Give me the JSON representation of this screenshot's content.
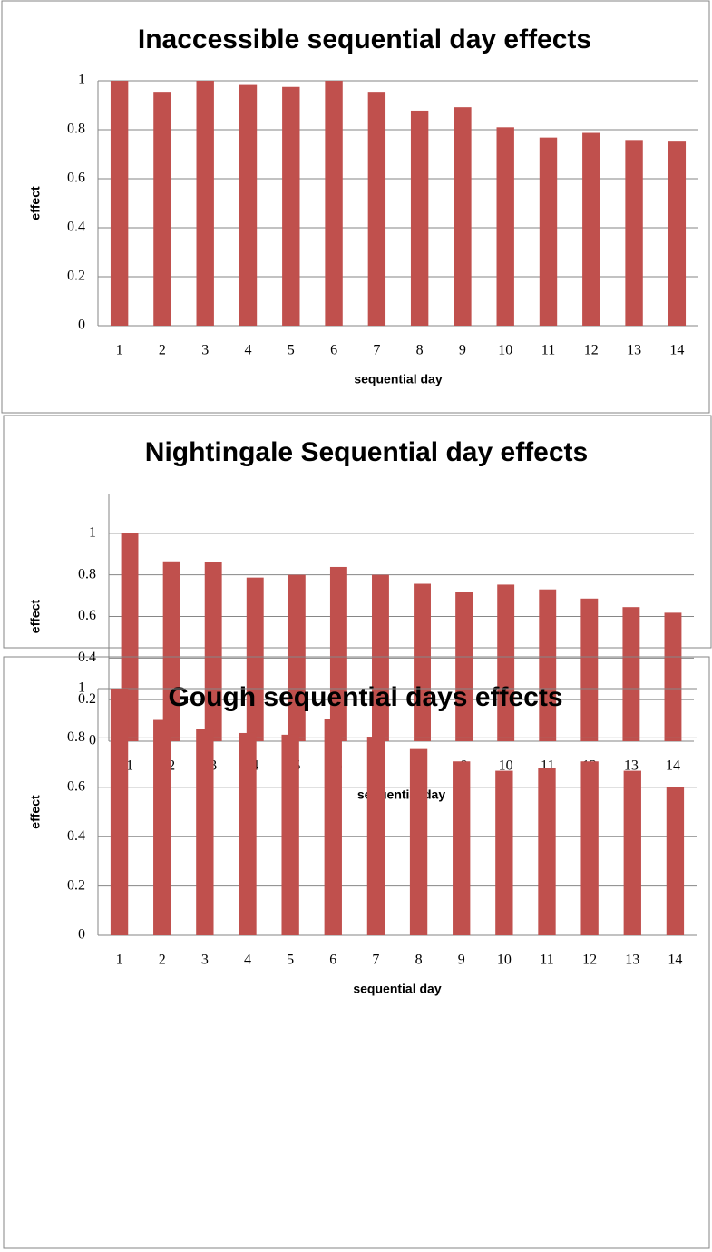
{
  "chart_data": [
    {
      "type": "bar",
      "title": "Inaccessible sequential day effects",
      "x_label": "sequential day",
      "y_label": "effect",
      "categories": [
        "1",
        "2",
        "3",
        "4",
        "5",
        "6",
        "7",
        "8",
        "9",
        "10",
        "11",
        "12",
        "13",
        "14"
      ],
      "values": [
        1,
        0.955,
        1,
        0.983,
        0.975,
        1,
        0.955,
        0.878,
        0.892,
        0.81,
        0.768,
        0.787,
        0.758,
        0.755
      ],
      "color": "#c0504d",
      "ylim": [
        0,
        1
      ],
      "yticks": [
        0,
        0.2,
        0.4,
        0.6,
        0.8,
        1
      ],
      "grid": true
    },
    {
      "type": "bar",
      "title": "Nightingale Sequential day effects",
      "x_label": "sequential day",
      "y_label": "effect",
      "categories": [
        "1",
        "2",
        "3",
        "4",
        "5",
        "6",
        "7",
        "8",
        "9",
        "10",
        "11",
        "12",
        "13",
        "14"
      ],
      "values": [
        1,
        0.865,
        0.86,
        0.787,
        0.8,
        0.838,
        0.8,
        0.757,
        0.72,
        0.753,
        0.73,
        0.686,
        0.645,
        0.618
      ],
      "color": "#c0504d",
      "ylim": [
        0,
        1.2
      ],
      "yticks": [
        0,
        0.2,
        0.4,
        0.6,
        0.8,
        1
      ],
      "grid": true
    },
    {
      "type": "bar",
      "title": "Gough sequential days effects",
      "x_label": "sequential day",
      "y_label": "effect",
      "categories": [
        "1",
        "2",
        "3",
        "4",
        "5",
        "6",
        "7",
        "8",
        "9",
        "10",
        "11",
        "12",
        "13",
        "14"
      ],
      "values": [
        1,
        0.873,
        0.835,
        0.82,
        0.813,
        0.877,
        0.805,
        0.755,
        0.705,
        0.667,
        0.678,
        0.705,
        0.667,
        0.6
      ],
      "color": "#c0504d",
      "ylim": [
        0,
        1
      ],
      "yticks": [
        0,
        0.2,
        0.4,
        0.6,
        0.8,
        1
      ],
      "grid": true
    }
  ]
}
